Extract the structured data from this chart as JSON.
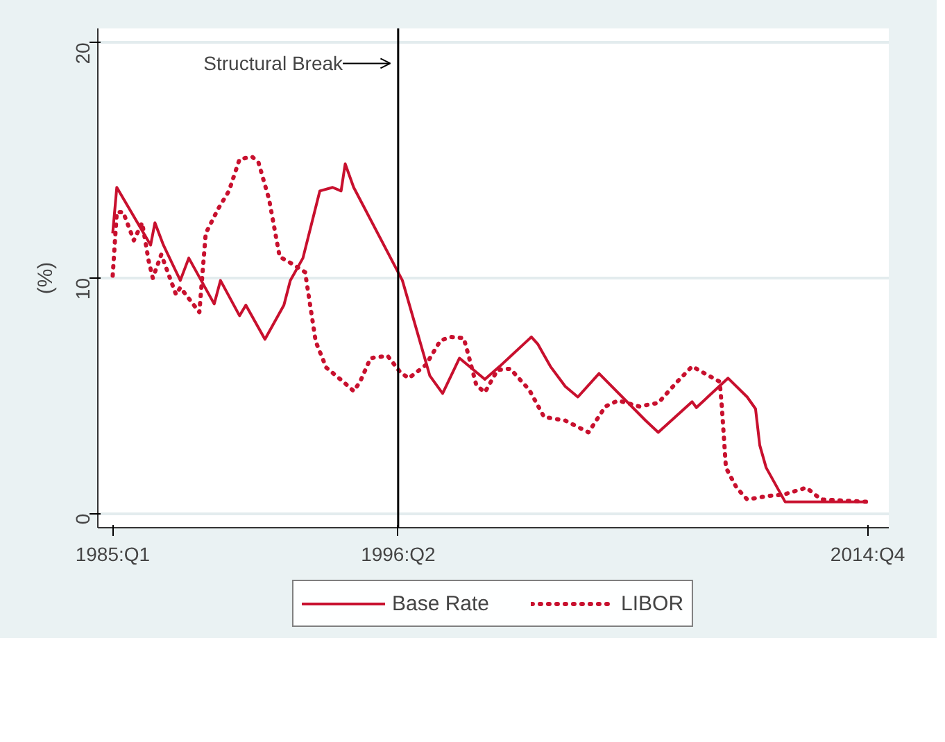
{
  "chart_data": {
    "type": "line",
    "ylabel": "(%)",
    "xlim": [
      "1984-06",
      "2015-08"
    ],
    "ylim": [
      -0.6,
      20.6
    ],
    "xticks": [
      {
        "value": "1985-01",
        "label": "1985:Q1"
      },
      {
        "value": "1996-04",
        "label": "1996:Q2"
      },
      {
        "value": "2014-10",
        "label": "2014:Q4"
      }
    ],
    "yticks": [
      0,
      10,
      20
    ],
    "grid": "y",
    "legend": "bottom",
    "ref_lines": [
      {
        "axis": "x",
        "value": "1996-04",
        "label": "Structural Break",
        "color": "#000000"
      }
    ],
    "series": [
      {
        "name": "Base Rate",
        "color": "#c8102e",
        "line_style": "solid",
        "x": [
          "1985-01",
          "1985-03",
          "1986-07",
          "1986-09",
          "1987-01",
          "1987-09",
          "1988-01",
          "1989-01",
          "1989-04",
          "1990-01",
          "1990-04",
          "1991-01",
          "1991-10",
          "1992-01",
          "1992-07",
          "1993-03",
          "1993-09",
          "1994-01",
          "1994-03",
          "1994-07",
          "1996-06",
          "1997-07",
          "1998-01",
          "1998-09",
          "1999-09",
          "2000-04",
          "2001-07",
          "2001-10",
          "2002-04",
          "2002-11",
          "2003-05",
          "2004-03",
          "2006-01",
          "2006-07",
          "2007-11",
          "2008-01",
          "2009-04",
          "2010-01",
          "2010-05",
          "2010-07",
          "2010-10",
          "2011-07",
          "2014-10"
        ],
        "values": [
          11.9,
          13.85,
          11.4,
          12.35,
          11.4,
          9.9,
          10.85,
          8.9,
          9.9,
          8.4,
          8.85,
          7.4,
          8.85,
          9.9,
          10.85,
          13.7,
          13.85,
          13.7,
          14.85,
          13.85,
          9.9,
          5.85,
          5.1,
          6.6,
          5.7,
          6.25,
          7.5,
          7.2,
          6.25,
          5.4,
          4.95,
          5.95,
          3.95,
          3.45,
          4.75,
          4.5,
          5.75,
          4.95,
          4.45,
          2.9,
          1.95,
          0.5,
          0.5
        ]
      },
      {
        "name": "LIBOR",
        "color": "#c8102e",
        "line_style": "dotted",
        "x": [
          "1985-01",
          "1985-03",
          "1985-06",
          "1985-11",
          "1986-03",
          "1986-06",
          "1986-08",
          "1986-12",
          "1987-07",
          "1987-09",
          "1988-06",
          "1988-09",
          "1989-03",
          "1989-08",
          "1990-01",
          "1990-07",
          "1990-10",
          "1991-03",
          "1991-08",
          "1992-02",
          "1992-08",
          "1993-01",
          "1993-06",
          "1994-02",
          "1994-07",
          "1994-10",
          "1995-03",
          "1995-11",
          "1996-05",
          "1996-09",
          "1997-05",
          "1997-12",
          "1998-05",
          "1998-11",
          "1999-01",
          "1999-05",
          "1999-09",
          "2000-03",
          "2000-09",
          "2001-06",
          "2002-01",
          "2002-11",
          "2003-10",
          "2004-06",
          "2004-12",
          "2005-10",
          "2006-07",
          "2007-04",
          "2007-11",
          "2008-05",
          "2008-12",
          "2009-01",
          "2009-03",
          "2009-08",
          "2010-01",
          "2010-11",
          "2011-06",
          "2012-05",
          "2012-12",
          "2014-10"
        ],
        "values": [
          10.1,
          12.8,
          12.8,
          11.6,
          12.35,
          10.75,
          10.0,
          11.0,
          9.3,
          9.6,
          8.55,
          11.9,
          12.95,
          13.7,
          15.05,
          15.15,
          14.9,
          13.35,
          10.9,
          10.6,
          10.25,
          7.3,
          6.2,
          5.6,
          5.2,
          5.6,
          6.6,
          6.7,
          6.0,
          5.75,
          6.3,
          7.35,
          7.5,
          7.45,
          6.8,
          5.45,
          5.15,
          6.1,
          6.15,
          5.25,
          4.1,
          3.95,
          3.45,
          4.55,
          4.8,
          4.55,
          4.7,
          5.6,
          6.25,
          5.95,
          5.6,
          4.55,
          1.95,
          1.1,
          0.6,
          0.75,
          0.8,
          1.1,
          0.6,
          0.5
        ]
      }
    ]
  }
}
